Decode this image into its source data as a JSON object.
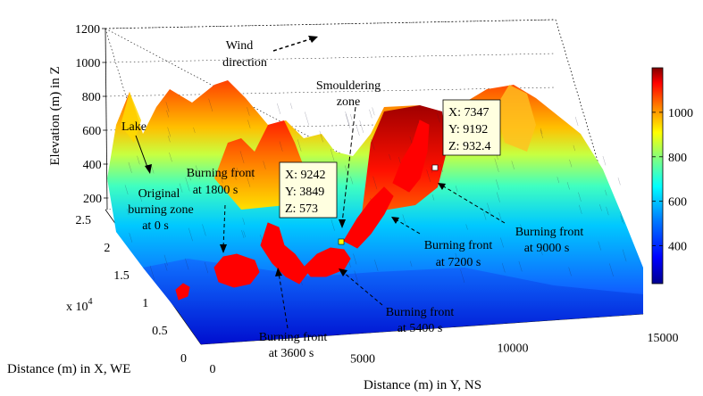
{
  "chart_data": {
    "type": "surface3d",
    "title": "",
    "axes": {
      "z": {
        "label": "Elevation (m) in Z",
        "ticks": [
          "200",
          "400",
          "600",
          "800",
          "1000",
          "1200"
        ],
        "range": [
          200,
          1200
        ]
      },
      "x": {
        "label": "Distance (m) in X, WE",
        "ticks": [
          "0",
          "0.5",
          "1",
          "1.5",
          "2",
          "2.5"
        ],
        "multiplier": "x 10",
        "exponent": "4",
        "range": [
          0,
          25000
        ]
      },
      "y": {
        "label": "Distance (m) in Y, NS",
        "ticks": [
          "0",
          "5000",
          "10000",
          "15000"
        ],
        "range": [
          0,
          15000
        ]
      }
    },
    "grid": true,
    "colorbar": {
      "ticks": [
        "400",
        "600",
        "800",
        "1000"
      ],
      "range": [
        230,
        1200
      ],
      "colors": [
        "#00008f",
        "#0000ff",
        "#0080ff",
        "#00ffff",
        "#80ff80",
        "#ffff00",
        "#ff8000",
        "#ff0000",
        "#800000"
      ]
    },
    "datatips": [
      {
        "x": "X: 7347",
        "y": "Y: 9192",
        "z": "Z: 932.4"
      },
      {
        "x": "X: 9242",
        "y": "Y: 3849",
        "z": "Z: 573"
      }
    ],
    "annotations": {
      "wind_line1": "Wind",
      "wind_line2": "direction",
      "smoulder_line1": "Smouldering",
      "smoulder_line2": "zone",
      "lake": "Lake",
      "original_line1": "Original",
      "original_line2": "burning zone",
      "original_line3": "at 0 s",
      "bf1800_line1": "Burning front",
      "bf1800_line2": "at 1800 s",
      "bf3600_line1": "Burning front",
      "bf3600_line2": "at 3600 s",
      "bf5400_line1": "Burning front",
      "bf5400_line2": "at 5400 s",
      "bf7200_line1": "Burning front",
      "bf7200_line2": "at 7200 s",
      "bf9000_line1": "Burning front",
      "bf9000_line2": "at 9000 s"
    },
    "colors": {
      "burning": "#ff0000",
      "tip_bg": "#ffffe0"
    }
  }
}
